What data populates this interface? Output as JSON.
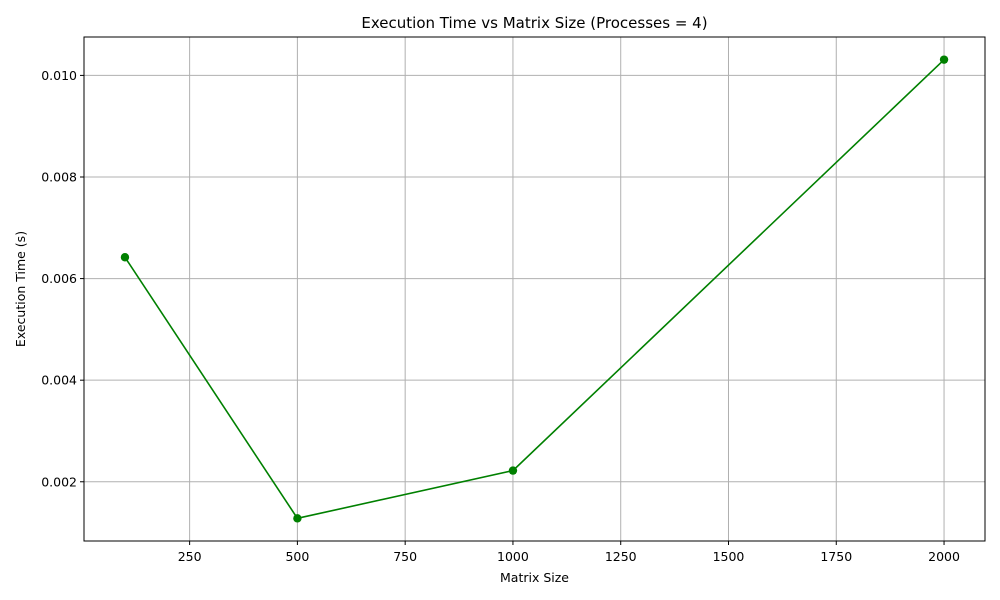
{
  "chart_data": {
    "type": "line",
    "title": "Execution Time vs Matrix Size (Processes = 4)",
    "xlabel": "Matrix Size",
    "ylabel": "Execution Time (s)",
    "x": [
      100,
      500,
      1000,
      2000
    ],
    "series": [
      {
        "values": [
          0.00642,
          0.00128,
          0.00222,
          0.01031
        ],
        "color": "#008000",
        "marker": "circle"
      }
    ],
    "xlim": [
      5,
      2095
    ],
    "ylim": [
      0.000834,
      0.010756
    ],
    "xticks": [
      250,
      500,
      750,
      1000,
      1250,
      1500,
      1750,
      2000
    ],
    "xtick_labels": [
      "250",
      "500",
      "750",
      "1000",
      "1250",
      "1500",
      "1750",
      "2000"
    ],
    "yticks": [
      0.002,
      0.004,
      0.006,
      0.008,
      0.01
    ],
    "ytick_labels": [
      "0.002",
      "0.004",
      "0.006",
      "0.008",
      "0.010"
    ],
    "grid": true,
    "grid_color": "#b0b0b0"
  }
}
